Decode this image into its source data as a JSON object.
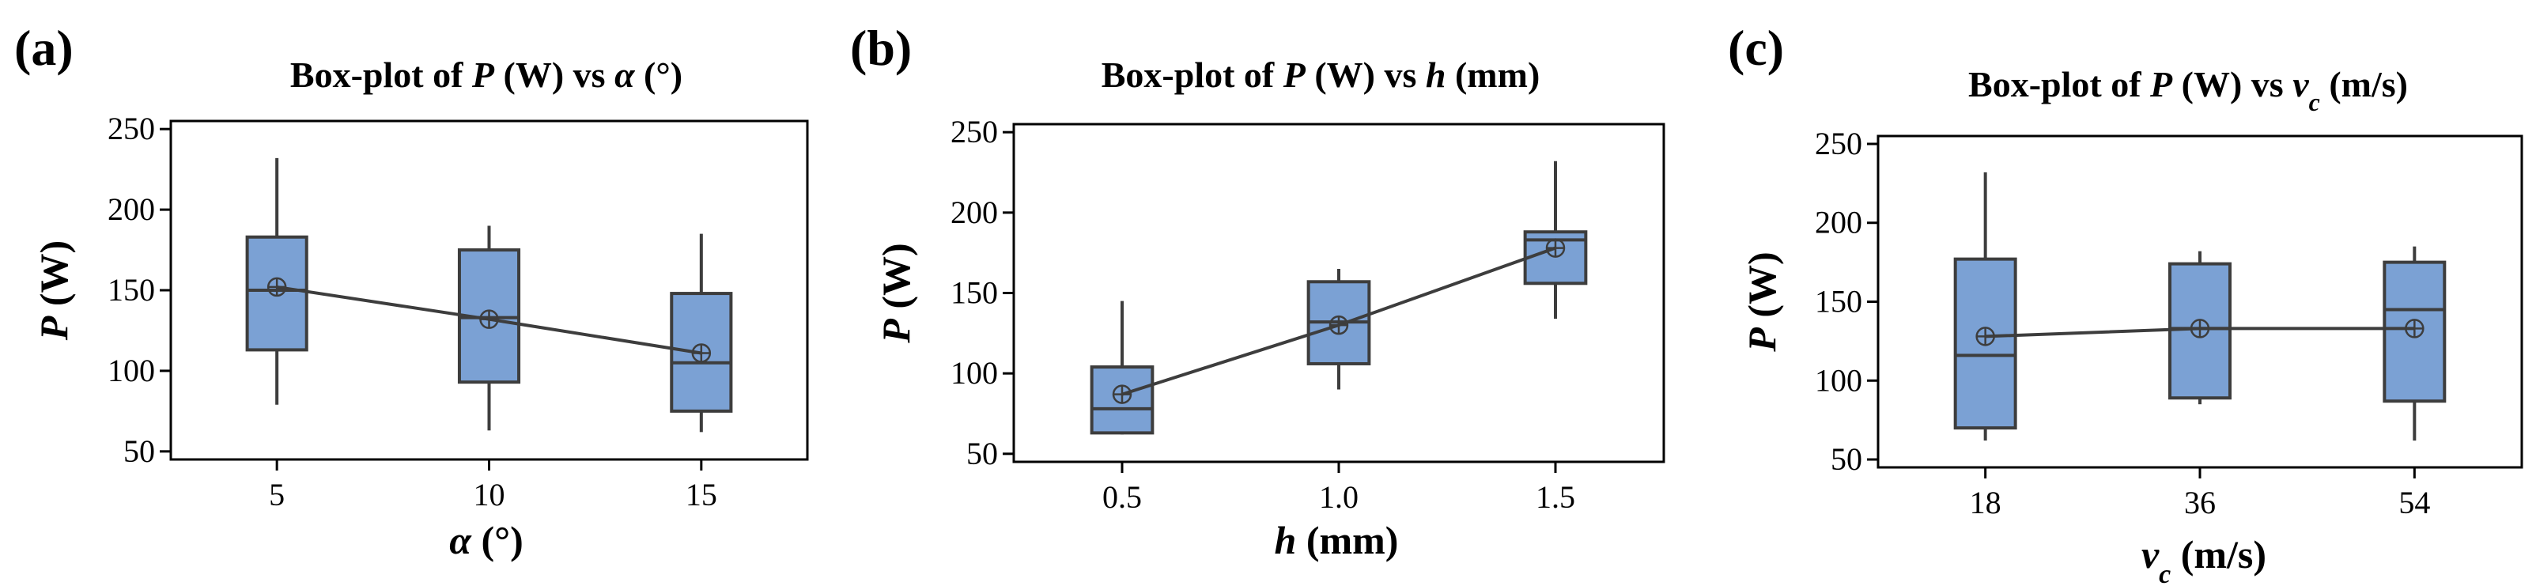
{
  "chart_data": [
    {
      "type": "box",
      "panel_label": "(a)",
      "title": {
        "prefix": "Box-plot of ",
        "var": "P",
        "mid": " (W) vs ",
        "xvar": "α",
        "xsub": "",
        "unit": " (°)"
      },
      "ylabel": {
        "var": "P",
        "unit": " (W)"
      },
      "xlabel": {
        "var": "α",
        "sub": "",
        "unit": " (°)"
      },
      "ylim": [
        45,
        255
      ],
      "yticks": [
        50,
        100,
        150,
        200,
        250
      ],
      "categories": [
        "5",
        "10",
        "15"
      ],
      "boxes": [
        {
          "min": 79,
          "q1": 113,
          "median": 150,
          "q3": 183,
          "max": 232,
          "mean": 152
        },
        {
          "min": 63,
          "q1": 93,
          "median": 133,
          "q3": 175,
          "max": 190,
          "mean": 132
        },
        {
          "min": 62,
          "q1": 75,
          "median": 105,
          "q3": 148,
          "max": 185,
          "mean": 111
        }
      ]
    },
    {
      "type": "box",
      "panel_label": "(b)",
      "title": {
        "prefix": "Box-plot of ",
        "var": "P",
        "mid": " (W) vs ",
        "xvar": "h",
        "xsub": "",
        "unit": " (mm)"
      },
      "ylabel": {
        "var": "P",
        "unit": " (W)"
      },
      "xlabel": {
        "var": "h",
        "sub": "",
        "unit": " (mm)"
      },
      "ylim": [
        45,
        255
      ],
      "yticks": [
        50,
        100,
        150,
        200,
        250
      ],
      "categories": [
        "0.5",
        "1.0",
        "1.5"
      ],
      "boxes": [
        {
          "min": 62,
          "q1": 63,
          "median": 78,
          "q3": 104,
          "max": 145,
          "mean": 87
        },
        {
          "min": 90,
          "q1": 106,
          "median": 132,
          "q3": 157,
          "max": 165,
          "mean": 130
        },
        {
          "min": 134,
          "q1": 156,
          "median": 183,
          "q3": 188,
          "max": 232,
          "mean": 178
        }
      ]
    },
    {
      "type": "box",
      "panel_label": "(c)",
      "title": {
        "prefix": "Box-plot of ",
        "var": "P",
        "mid": " (W) vs ",
        "xvar": "v",
        "xsub": "c",
        "unit": " (m/s)"
      },
      "ylabel": {
        "var": "P",
        "unit": " (W)"
      },
      "xlabel": {
        "var": "v",
        "sub": "c",
        "unit": " (m/s)"
      },
      "ylim": [
        45,
        255
      ],
      "yticks": [
        50,
        100,
        150,
        200,
        250
      ],
      "categories": [
        "18",
        "36",
        "54"
      ],
      "boxes": [
        {
          "min": 62,
          "q1": 70,
          "median": 116,
          "q3": 177,
          "max": 232,
          "mean": 128
        },
        {
          "min": 85,
          "q1": 89,
          "median": 133,
          "q3": 174,
          "max": 182,
          "mean": 133
        },
        {
          "min": 62,
          "q1": 87,
          "median": 145,
          "q3": 175,
          "max": 185,
          "mean": 133
        }
      ]
    }
  ],
  "colors": {
    "box_fill": "#7ba1d4",
    "line": "#3d3d3d",
    "axis": "#000000"
  }
}
